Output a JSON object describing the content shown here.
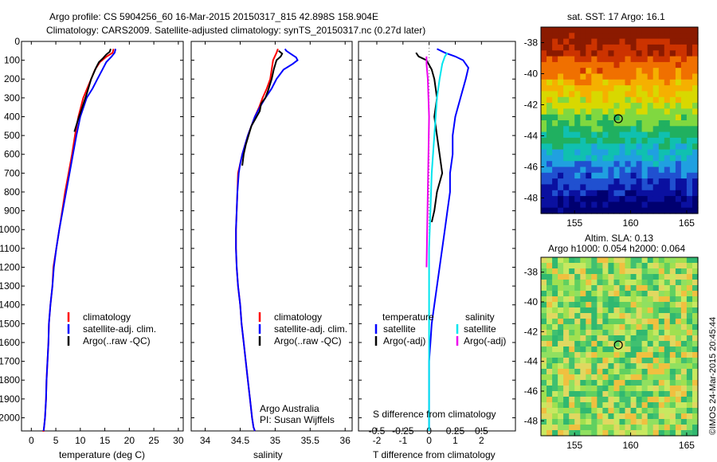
{
  "header": {
    "line1": "Argo profile: CS 5904256_60 16-Mar-2015 20150317_815 42.898S 158.904E",
    "line2": "Climatology: CARS2009. Satellite-adjusted climatology: synTS_20150317.nc (0.27d later)"
  },
  "colors": {
    "climatology": "#ff0000",
    "satellite": "#0000ff",
    "argo": "#000000",
    "sat_salinity": "#00e5ee",
    "argo_salinity": "#ee00ee"
  },
  "chart_data": [
    {
      "type": "line",
      "id": "temperature",
      "xlabel": "temperature (deg C)",
      "xlim": [
        -2,
        31
      ],
      "ylim": [
        0,
        2070
      ],
      "xticks": [
        0,
        5,
        10,
        15,
        20,
        25,
        30
      ],
      "yticks": [
        0,
        100,
        200,
        300,
        400,
        500,
        600,
        700,
        800,
        900,
        1000,
        1100,
        1200,
        1300,
        1400,
        1500,
        1600,
        1700,
        1800,
        1900,
        2000
      ],
      "legend": [
        "climatology",
        "satellite-adj. clim.",
        "Argo(..raw -QC)"
      ],
      "series": [
        {
          "name": "climatology",
          "color": "red",
          "x": [
            16.8,
            16.6,
            15.4,
            14.0,
            13.0,
            12.2,
            11.4,
            10.6,
            9.6,
            8.9,
            8.3,
            7.6,
            6.9,
            6.3,
            5.7,
            5.1,
            4.5,
            4.3,
            3.9,
            3.6,
            3.5,
            3.3,
            3.1,
            3.0,
            2.8,
            2.6,
            2.5,
            2.3
          ],
          "y": [
            40,
            60,
            80,
            110,
            150,
            200,
            250,
            300,
            400,
            500,
            600,
            700,
            800,
            900,
            1000,
            1100,
            1200,
            1300,
            1400,
            1500,
            1600,
            1700,
            1800,
            1900,
            2000,
            2050,
            2070,
            2070
          ]
        },
        {
          "name": "satellite-adj. clim.",
          "color": "blue",
          "x": [
            17.2,
            17.0,
            16.4,
            15.3,
            14.5,
            13.5,
            12.5,
            11.3,
            10.0,
            9.2,
            8.5,
            7.8,
            7.1,
            6.4,
            5.7,
            5.1,
            4.6,
            4.3,
            3.9,
            3.6,
            3.5,
            3.3,
            3.1,
            3.0,
            2.8,
            2.6,
            2.5
          ],
          "y": [
            40,
            60,
            80,
            110,
            150,
            200,
            250,
            300,
            400,
            500,
            600,
            700,
            800,
            900,
            1000,
            1100,
            1200,
            1300,
            1400,
            1500,
            1600,
            1700,
            1800,
            1900,
            2000,
            2050,
            2070
          ]
        },
        {
          "name": "Argo(..raw -QC)",
          "color": "black",
          "x": [
            16.2,
            16.0,
            15.3,
            14.6,
            13.8,
            13.2,
            12.7,
            12.2,
            11.3,
            10.4,
            9.5,
            8.8
          ],
          "y": [
            40,
            55,
            70,
            90,
            110,
            140,
            170,
            200,
            280,
            350,
            420,
            480
          ]
        }
      ]
    },
    {
      "type": "line",
      "id": "salinity",
      "xlabel": "salinity",
      "xlim": [
        33.8,
        36.1
      ],
      "ylim": [
        0,
        2070
      ],
      "xticks": [
        34,
        34.5,
        35,
        35.5,
        36
      ],
      "legend": [
        "climatology",
        "satellite-adj. clim.",
        "Argo(..raw -QC)"
      ],
      "annotation": [
        "Argo Australia",
        "PI: Susan Wijffels"
      ],
      "series": [
        {
          "name": "climatology",
          "color": "red",
          "x": [
            35.04,
            35.02,
            34.97,
            34.95,
            34.93,
            34.88,
            34.82,
            34.77,
            34.71,
            34.66,
            34.61,
            34.57,
            34.53,
            34.5,
            34.47,
            34.46,
            34.45,
            34.44,
            34.44,
            34.45,
            34.47,
            34.5,
            34.52,
            34.55,
            34.58,
            34.61,
            34.64,
            34.67,
            34.69,
            34.71
          ],
          "y": [
            40,
            60,
            100,
            150,
            200,
            250,
            300,
            350,
            400,
            450,
            500,
            550,
            600,
            650,
            700,
            800,
            900,
            1000,
            1100,
            1200,
            1300,
            1400,
            1500,
            1600,
            1700,
            1800,
            1900,
            2000,
            2050,
            2070
          ]
        },
        {
          "name": "satellite-adj. clim.",
          "color": "blue",
          "x": [
            35.14,
            35.16,
            35.22,
            35.3,
            35.32,
            35.25,
            35.12,
            35.02,
            34.95,
            34.86,
            34.78,
            34.71,
            34.66,
            34.61,
            34.57,
            34.53,
            34.5,
            34.48,
            34.46,
            34.45,
            34.44,
            34.44,
            34.45,
            34.47,
            34.5,
            34.52,
            34.55,
            34.58,
            34.61,
            34.64,
            34.67,
            34.69,
            34.71
          ],
          "y": [
            40,
            50,
            65,
            85,
            100,
            120,
            150,
            200,
            250,
            300,
            350,
            400,
            450,
            500,
            550,
            600,
            650,
            700,
            800,
            900,
            1000,
            1100,
            1200,
            1300,
            1400,
            1500,
            1600,
            1700,
            1800,
            1900,
            2000,
            2050,
            2070
          ]
        },
        {
          "name": "Argo(..raw -QC)",
          "color": "black",
          "x": [
            35.05,
            35.1,
            35.08,
            35.02,
            34.98,
            34.95,
            34.9,
            34.86,
            34.8,
            34.78,
            34.72,
            34.66,
            34.62,
            34.58,
            34.55,
            34.53
          ],
          "y": [
            50,
            65,
            80,
            100,
            150,
            200,
            260,
            300,
            330,
            370,
            410,
            450,
            500,
            550,
            600,
            660
          ]
        }
      ]
    },
    {
      "type": "line",
      "id": "difference",
      "xlabel": "T difference from climatology",
      "xlabel_top": "S difference from climatology",
      "xlim": [
        -2.7,
        3.3
      ],
      "ylim": [
        0,
        2070
      ],
      "xticks": [
        -2,
        -1,
        0,
        1,
        2
      ],
      "xticks_top": [
        -0.5,
        -0.25,
        0,
        0.25,
        0.5
      ],
      "legend_headers": [
        "temperature",
        "salinity"
      ],
      "legend": [
        "satellite",
        "Argo(-adj)",
        "satellite",
        "Argo(-adj)"
      ],
      "series": [
        {
          "name": "temperature satellite",
          "color": "blue",
          "x": [
            0.3,
            0.6,
            1.0,
            1.3,
            1.5,
            1.4,
            1.2,
            1.0,
            0.9,
            0.9,
            0.8,
            0.8,
            0.7,
            0.6,
            0.5,
            0.4,
            0.3,
            0.2,
            0.1,
            0.05,
            0,
            0,
            0,
            0
          ],
          "y": [
            40,
            60,
            80,
            100,
            140,
            200,
            300,
            400,
            500,
            600,
            700,
            800,
            900,
            1000,
            1100,
            1200,
            1300,
            1400,
            1500,
            1600,
            1700,
            1800,
            1900,
            2070
          ]
        },
        {
          "name": "temperature Argo(-adj)",
          "color": "black",
          "x": [
            -0.5,
            -0.4,
            -0.1,
            0.1,
            0.2,
            0.3,
            0.2,
            0.3,
            0.4,
            0.5,
            0.3,
            0.2,
            0.1
          ],
          "y": [
            60,
            80,
            100,
            150,
            200,
            300,
            400,
            500,
            600,
            700,
            800,
            900,
            960
          ]
        },
        {
          "name": "salinity satellite",
          "color": "cyan",
          "x": [
            0.7,
            0.6,
            0.5,
            0.4,
            0.3,
            0.2,
            0.1,
            0.05,
            0,
            0,
            0,
            0,
            0
          ],
          "y": [
            60,
            80,
            120,
            200,
            300,
            500,
            700,
            900,
            1100,
            1300,
            1500,
            1700,
            2070
          ]
        },
        {
          "name": "salinity Argo(-adj)",
          "color": "magenta",
          "x": [
            -0.1,
            -0.1,
            -0.05,
            0,
            -0.05,
            -0.1
          ],
          "y": [
            80,
            120,
            200,
            400,
            800,
            1200
          ]
        }
      ]
    },
    {
      "type": "heatmap",
      "id": "sst_map",
      "title": "sat. SST: 17 Argo: 16.1",
      "xticks": [
        155,
        160,
        165
      ],
      "yticks": [
        -38,
        -40,
        -42,
        -44,
        -46,
        -48
      ],
      "xlim": [
        152,
        166
      ],
      "ylim": [
        -49,
        -37
      ],
      "marker": {
        "lon": 158.904,
        "lat": -42.898
      }
    },
    {
      "type": "heatmap",
      "id": "sla_map",
      "title_lines": [
        "Altim. SLA: 0.13",
        "Argo h1000: 0.054 h2000: 0.064"
      ],
      "xticks": [
        155,
        160,
        165
      ],
      "yticks": [
        -38,
        -40,
        -42,
        -44,
        -46,
        -48
      ],
      "xlim": [
        152,
        166
      ],
      "ylim": [
        -49,
        -37
      ],
      "marker": {
        "lon": 158.904,
        "lat": -42.898
      }
    }
  ],
  "credit": "©IMOS 24-Mar-2015 20:45:44"
}
